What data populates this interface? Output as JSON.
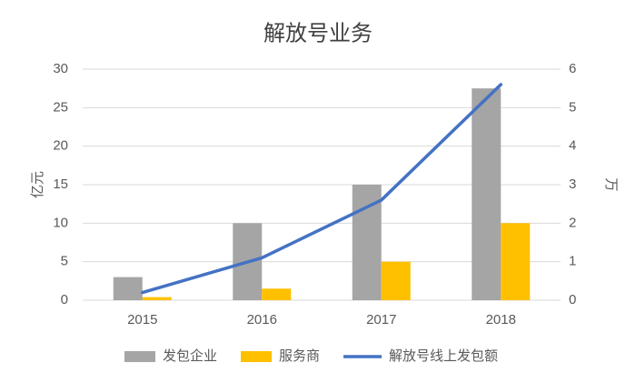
{
  "chart_data": {
    "type": "bar",
    "title": "解放号业务",
    "categories": [
      "2015",
      "2016",
      "2017",
      "2018"
    ],
    "series": [
      {
        "name": "发包企业",
        "color": "#a5a5a5",
        "values": [
          3,
          10,
          15,
          27.5
        ]
      },
      {
        "name": "服务商",
        "color": "#ffc000",
        "values": [
          0.4,
          1.5,
          5,
          10
        ]
      },
      {
        "name": "解放号线上发包额",
        "color": "#4472c4",
        "type": "line",
        "axis": "y2",
        "values": [
          0.2,
          1.1,
          2.6,
          5.6
        ]
      }
    ],
    "ylabel": "亿元",
    "y2label": "万",
    "ylim": [
      0,
      30
    ],
    "yticks": [
      0,
      5,
      10,
      15,
      20,
      25,
      30
    ],
    "y2lim": [
      0,
      6
    ],
    "y2ticks": [
      0,
      1,
      2,
      3,
      4,
      5,
      6
    ],
    "grid": true,
    "legend": "bottom"
  }
}
